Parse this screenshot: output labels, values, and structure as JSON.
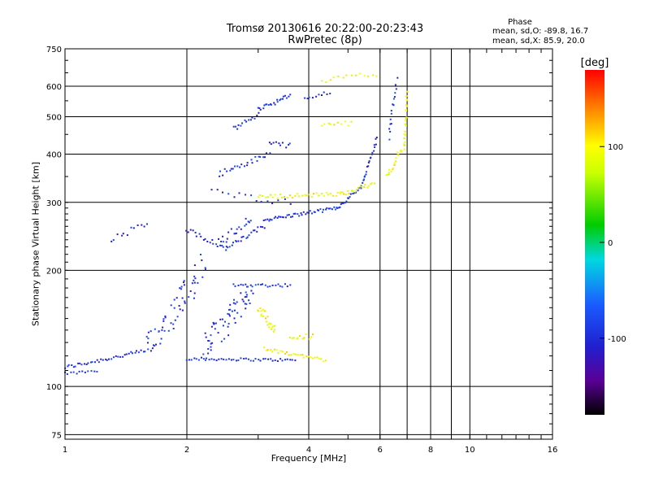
{
  "chart_data": {
    "type": "scatter",
    "title": "Tromsø 20130616 20:22:00-20:23:43",
    "subtitle": "RwPretec (8p)",
    "xlabel": "Frequency [MHz]",
    "ylabel": "Stationary phase Virtual Height [km]",
    "x_scale": "log",
    "y_scale": "log",
    "xlim": [
      1,
      16
    ],
    "ylim": [
      73,
      750
    ],
    "x_ticks": [
      1,
      2,
      4,
      6,
      8,
      10,
      16
    ],
    "x_tick_labels": [
      "1",
      "2",
      "4",
      "6",
      "8",
      "10",
      "16"
    ],
    "x_minor_grid": [
      7,
      9
    ],
    "y_ticks": [
      75,
      100,
      200,
      300,
      400,
      500,
      600,
      750
    ],
    "y_tick_labels": [
      "75",
      "100",
      "200",
      "300",
      "400",
      "500",
      "600",
      "750"
    ],
    "grid": true,
    "legend": {
      "title": "Phase",
      "line_o": "mean, sd,O: -89.8, 16.7",
      "line_x": "mean, sd,X:  85.9, 20.0"
    },
    "colorbar": {
      "label": "[deg]",
      "range": [
        -180,
        180
      ],
      "ticks": [
        100,
        0,
        -100
      ],
      "tick_labels": [
        "100",
        "0",
        "-100"
      ]
    },
    "series": [
      {
        "mode": "O",
        "phase": -95,
        "segments": [
          {
            "from": [
              1.0,
              112
            ],
            "to": [
              1.6,
              124
            ],
            "samples": 40,
            "jitter": 0.012
          },
          {
            "from": [
              1.0,
              108
            ],
            "to": [
              1.2,
              110
            ],
            "samples": 12,
            "jitter": 0.01
          },
          {
            "from": [
              2.0,
              118
            ],
            "to": [
              3.7,
              117
            ],
            "samples": 45,
            "jitter": 0.008
          },
          {
            "from": [
              2.6,
              183
            ],
            "to": [
              3.6,
              183
            ],
            "samples": 24,
            "jitter": 0.01
          },
          {
            "from": [
              2.0,
              255
            ],
            "to": [
              2.5,
              228
            ],
            "samples": 20,
            "jitter": 0.015
          },
          {
            "from": [
              2.5,
              228
            ],
            "to": [
              3.1,
              260
            ],
            "samples": 22,
            "jitter": 0.015
          },
          {
            "from": [
              3.1,
              270
            ],
            "to": [
              4.7,
              290
            ],
            "samples": 45,
            "jitter": 0.01
          },
          {
            "from": [
              4.7,
              290
            ],
            "to": [
              5.4,
              330
            ],
            "samples": 20,
            "jitter": 0.01
          },
          {
            "from": [
              5.4,
              330
            ],
            "to": [
              5.9,
              440
            ],
            "samples": 22,
            "jitter": 0.012
          },
          {
            "from": [
              2.3,
              320
            ],
            "to": [
              3.6,
              300
            ],
            "samples": 15,
            "jitter": 0.02
          },
          {
            "from": [
              2.4,
              355
            ],
            "to": [
              3.2,
              400
            ],
            "samples": 25,
            "jitter": 0.02
          },
          {
            "from": [
              3.2,
              430
            ],
            "to": [
              3.6,
              420
            ],
            "samples": 10,
            "jitter": 0.015
          },
          {
            "from": [
              2.6,
              465
            ],
            "to": [
              3.0,
              505
            ],
            "samples": 14,
            "jitter": 0.015
          },
          {
            "from": [
              3.0,
              525
            ],
            "to": [
              3.6,
              565
            ],
            "samples": 22,
            "jitter": 0.015
          },
          {
            "from": [
              3.9,
              560
            ],
            "to": [
              4.5,
              575
            ],
            "samples": 10,
            "jitter": 0.015
          },
          {
            "from": [
              1.3,
              240
            ],
            "to": [
              1.6,
              265
            ],
            "samples": 12,
            "jitter": 0.02
          },
          {
            "from": [
              6.3,
              440
            ],
            "to": [
              6.6,
              620
            ],
            "samples": 16,
            "jitter": 0.02
          },
          {
            "from": [
              1.6,
              125
            ],
            "to": [
              2.2,
              205
            ],
            "samples": 60,
            "jitter": 0.08
          },
          {
            "from": [
              2.2,
              125
            ],
            "to": [
              2.9,
              175
            ],
            "samples": 60,
            "jitter": 0.08
          },
          {
            "from": [
              2.4,
              235
            ],
            "to": [
              2.9,
              275
            ],
            "samples": 20,
            "jitter": 0.03
          }
        ]
      },
      {
        "mode": "X",
        "phase": 95,
        "segments": [
          {
            "from": [
              3.0,
              310
            ],
            "to": [
              4.8,
              315
            ],
            "samples": 35,
            "jitter": 0.012
          },
          {
            "from": [
              4.8,
              315
            ],
            "to": [
              5.8,
              335
            ],
            "samples": 20,
            "jitter": 0.012
          },
          {
            "from": [
              6.2,
              350
            ],
            "to": [
              6.9,
              420
            ],
            "samples": 20,
            "jitter": 0.02
          },
          {
            "from": [
              6.9,
              420
            ],
            "to": [
              7.0,
              580
            ],
            "samples": 22,
            "jitter": 0.015
          },
          {
            "from": [
              3.0,
              160
            ],
            "to": [
              3.3,
              140
            ],
            "samples": 24,
            "jitter": 0.03
          },
          {
            "from": [
              3.1,
              125
            ],
            "to": [
              4.4,
              117
            ],
            "samples": 30,
            "jitter": 0.01
          },
          {
            "from": [
              3.6,
              135
            ],
            "to": [
              4.1,
              135
            ],
            "samples": 12,
            "jitter": 0.02
          },
          {
            "from": [
              4.3,
              620
            ],
            "to": [
              5.9,
              645
            ],
            "samples": 14,
            "jitter": 0.015
          },
          {
            "from": [
              4.3,
              480
            ],
            "to": [
              5.1,
              480
            ],
            "samples": 10,
            "jitter": 0.015
          }
        ]
      }
    ]
  }
}
